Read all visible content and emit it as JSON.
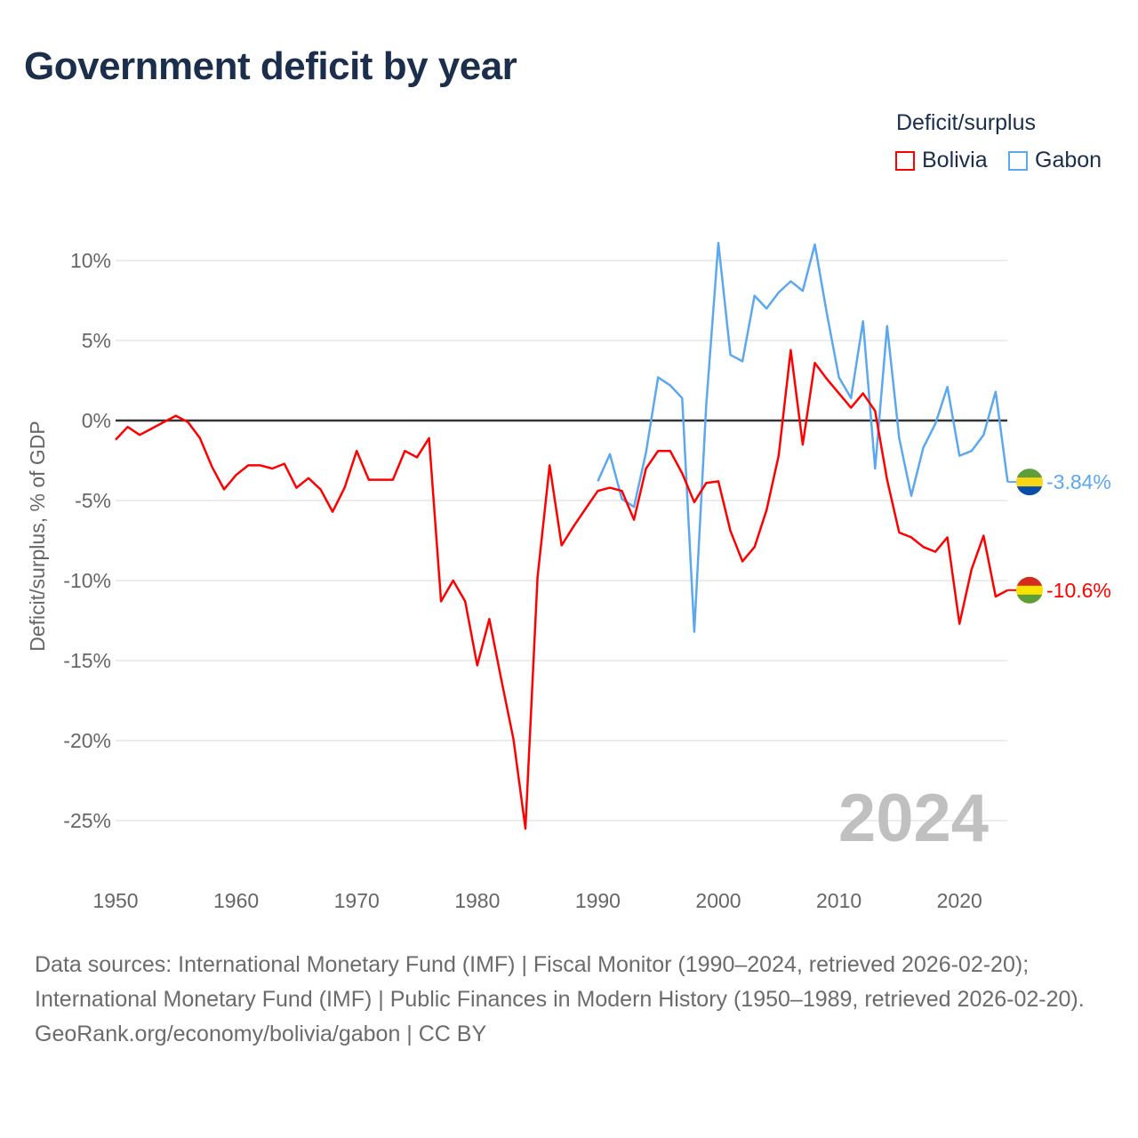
{
  "title": "Government deficit by year",
  "legend": {
    "title": "Deficit/surplus",
    "items": [
      {
        "label": "Bolivia",
        "color": "#ff0000"
      },
      {
        "label": "Gabon",
        "color": "#5ba8ee"
      }
    ]
  },
  "footer": {
    "sources": "Data sources: International Monetary Fund (IMF) | Fiscal Monitor (1990–2024, retrieved 2026-02-20); International Monetary Fund (IMF) | Public Finances in Modern History (1950–1989, retrieved 2026-02-20).",
    "credit": "GeoRank.org/economy/bolivia/gabon | CC BY"
  },
  "chart_data": {
    "type": "line",
    "title": "Government deficit by year",
    "xlabel": "",
    "ylabel": "Deficit/surplus, % of GDP",
    "xlim": [
      1950,
      2024
    ],
    "ylim": [
      -27,
      12
    ],
    "x_ticks": [
      1950,
      1960,
      1970,
      1980,
      1990,
      2000,
      2010,
      2020
    ],
    "y_ticks": [
      10,
      5,
      0,
      -5,
      -10,
      -15,
      -20,
      -25
    ],
    "y_tick_labels": [
      "10%",
      "5%",
      "0%",
      "-5%",
      "-10%",
      "-15%",
      "-20%",
      "-25%"
    ],
    "x_tick_labels": [
      "1950",
      "1960",
      "1970",
      "1980",
      "1990",
      "2000",
      "2010",
      "2020"
    ],
    "grid": true,
    "legend_position": "top-right",
    "watermark_year": "2024",
    "series": [
      {
        "name": "Bolivia",
        "color": "#ff0000",
        "start_year": 1950,
        "end_label": "-10.6%",
        "values": [
          -1.2,
          -0.4,
          -0.9,
          -0.5,
          -0.1,
          0.3,
          -0.1,
          -1.1,
          -2.9,
          -4.3,
          -3.4,
          -2.8,
          -2.8,
          -3.0,
          -2.7,
          -4.2,
          -3.6,
          -4.3,
          -5.7,
          -4.2,
          -1.9,
          -3.7,
          -3.7,
          -3.7,
          -1.9,
          -2.3,
          -1.1,
          -11.3,
          -10.0,
          -11.3,
          -15.3,
          -12.4,
          -16.2,
          -19.9,
          -25.5,
          -9.8,
          -2.8,
          -7.8,
          -6.6,
          -5.5,
          -4.4,
          -4.2,
          -4.4,
          -6.2,
          -3.0,
          -1.9,
          -1.9,
          -3.3,
          -5.1,
          -3.9,
          -3.8,
          -6.9,
          -8.8,
          -7.9,
          -5.6,
          -2.2,
          4.4,
          -1.5,
          3.6,
          2.6,
          1.7,
          0.8,
          1.7,
          0.6,
          -3.7,
          -7.0,
          -7.3,
          -7.9,
          -8.2,
          -7.3,
          -12.7,
          -9.3,
          -7.2,
          -11.0,
          -10.6
        ]
      },
      {
        "name": "Gabon",
        "color": "#5ba8ee",
        "start_year": 1990,
        "end_label": "-3.84%",
        "values": [
          -3.8,
          -2.1,
          -4.9,
          -5.4,
          -2.0,
          2.7,
          2.2,
          1.4,
          -13.2,
          1.0,
          11.1,
          4.1,
          3.7,
          7.8,
          7.0,
          8.0,
          8.7,
          8.1,
          11.0,
          6.7,
          2.7,
          1.4,
          6.2,
          -3.0,
          5.9,
          -1.1,
          -4.7,
          -1.7,
          -0.2,
          2.1,
          -2.2,
          -1.9,
          -0.9,
          1.8,
          -3.84
        ]
      }
    ]
  }
}
